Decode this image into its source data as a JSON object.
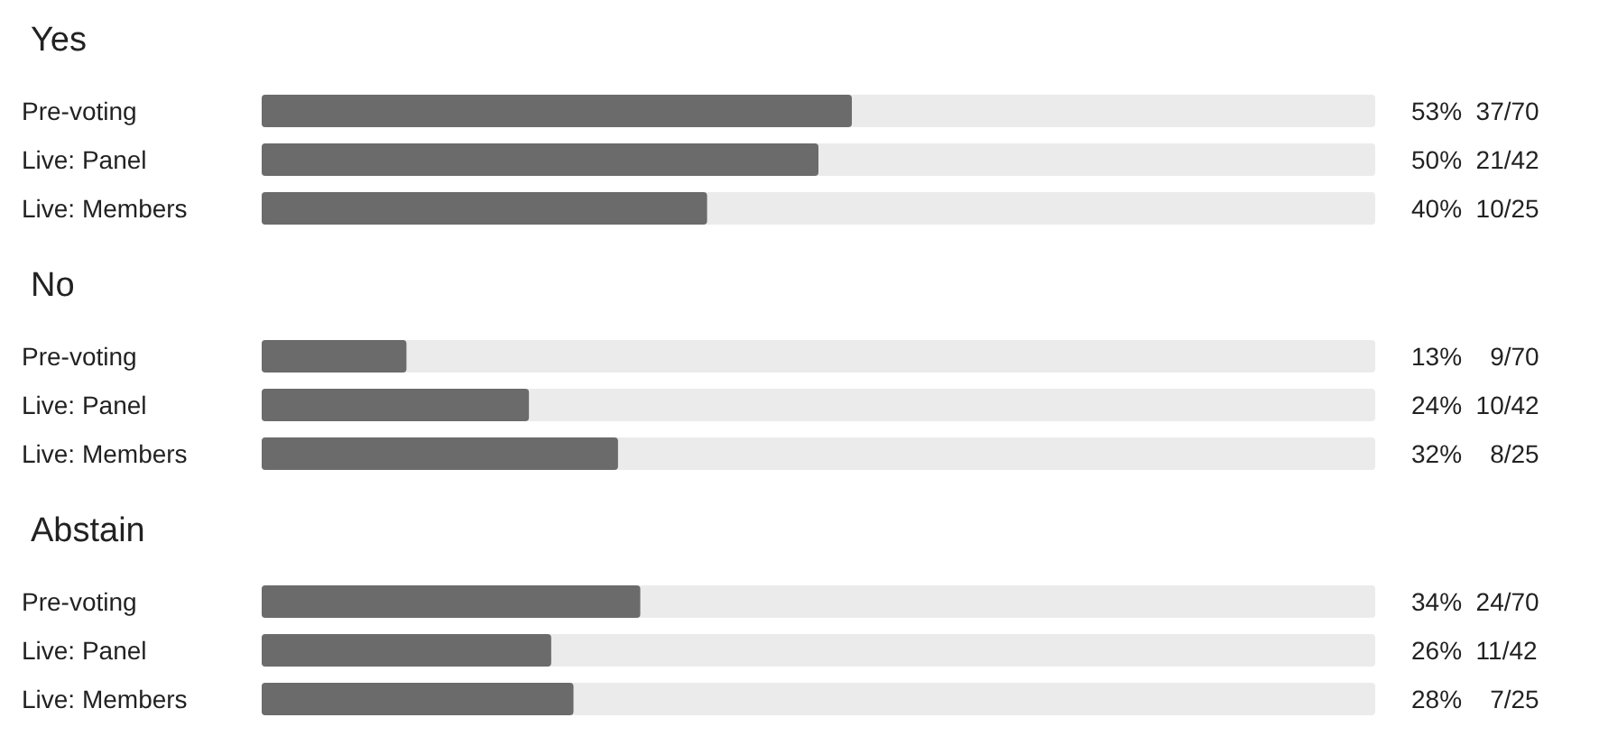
{
  "chart_data": [
    {
      "type": "bar",
      "orientation": "horizontal",
      "title": "Yes",
      "categories": [
        "Pre-voting",
        "Live: Panel",
        "Live: Members"
      ],
      "values": [
        53,
        50,
        40
      ],
      "value_labels": [
        "53%  37/70",
        "50%  21/42",
        "40%  10/25"
      ],
      "color": "#6b6b6b",
      "xlim": [
        0,
        100
      ],
      "tick_labels": "y"
    },
    {
      "type": "bar",
      "orientation": "horizontal",
      "title": "No",
      "categories": [
        "Pre-voting",
        "Live: Panel",
        "Live: Members"
      ],
      "values": [
        13,
        24,
        32
      ],
      "value_labels": [
        "13%    9/70",
        "24%  10/42",
        "32%    8/25"
      ],
      "color": "#6b6b6b",
      "xlim": [
        0,
        100
      ],
      "tick_labels": "y"
    },
    {
      "type": "bar",
      "orientation": "horizontal",
      "title": "Abstain",
      "categories": [
        "Pre-voting",
        "Live: Panel",
        "Live: Members"
      ],
      "values": [
        34,
        26,
        28
      ],
      "value_labels": [
        "34%  24/70",
        "26%  11/42",
        "28%    7/25"
      ],
      "color": "#6b6b6b",
      "xlim": [
        0,
        100
      ],
      "tick_labels": "y"
    }
  ]
}
